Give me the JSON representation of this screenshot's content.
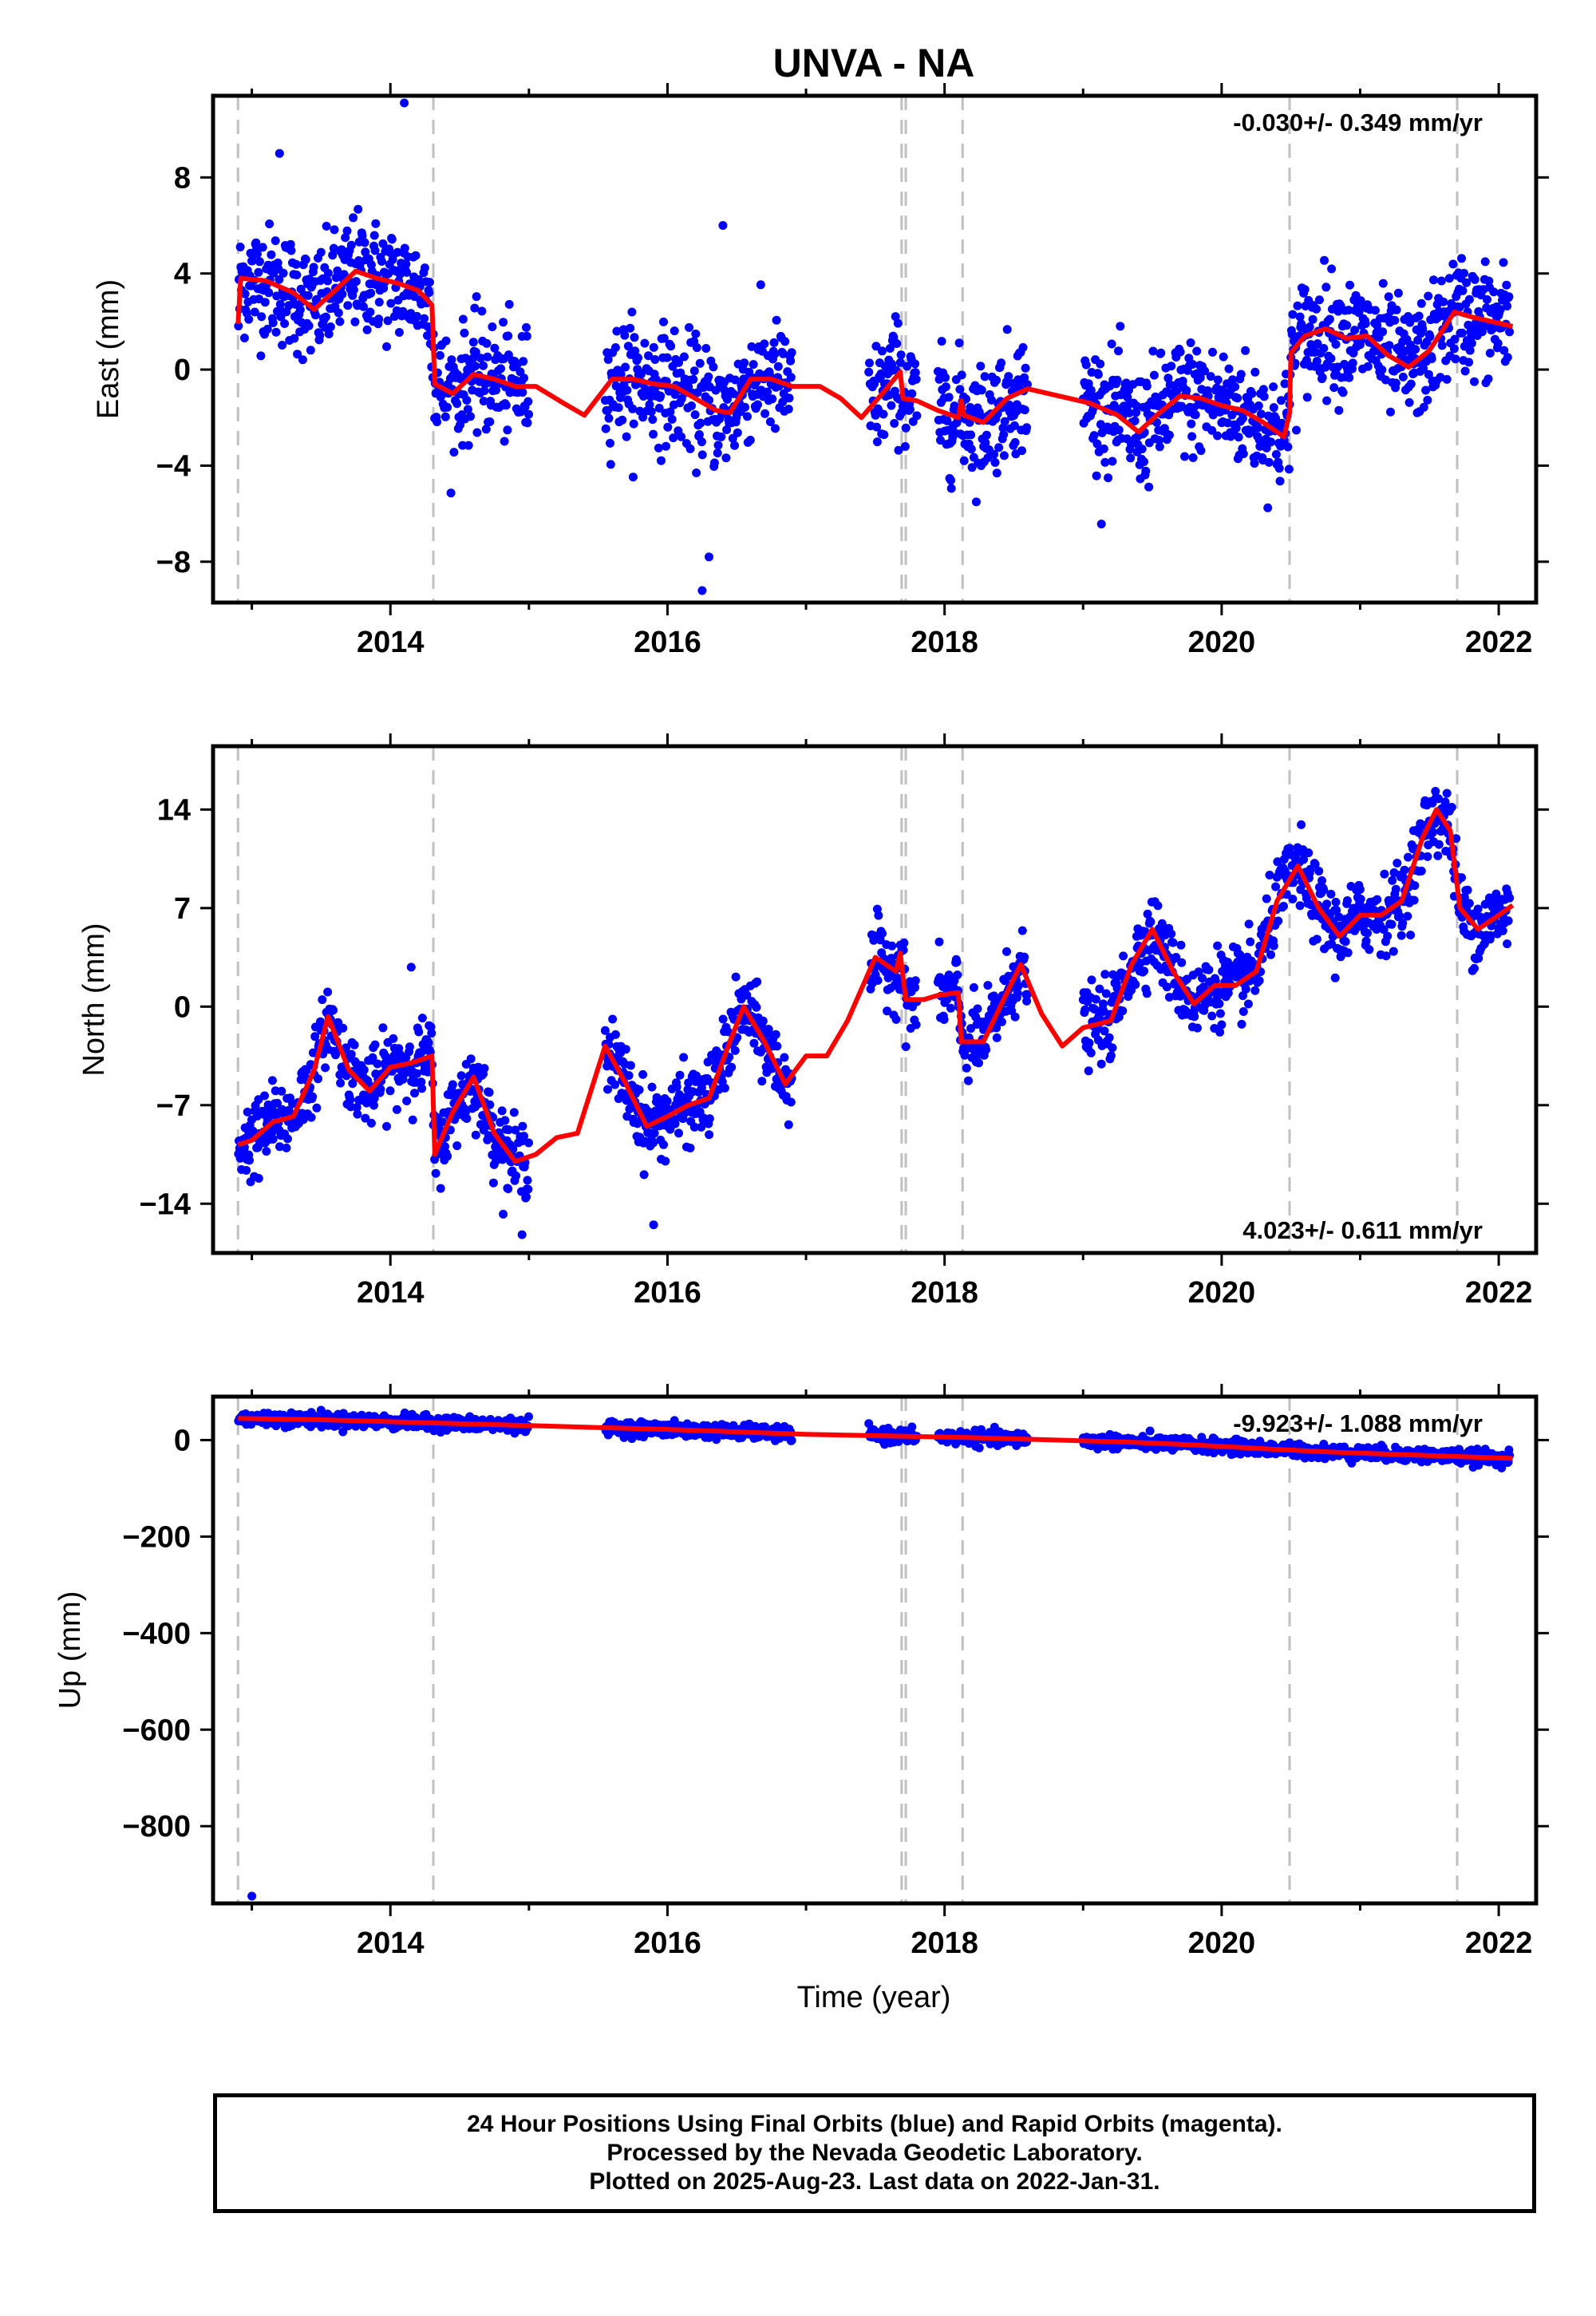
{
  "chart_data": {
    "title": "UNVA - NA",
    "type": "scatter",
    "xlabel": "Time (year)",
    "xlim": [
      2012.72,
      2022.27
    ],
    "x_ticks": [
      2014,
      2016,
      2018,
      2020,
      2022
    ],
    "breaks": [
      2012.9,
      2014.31,
      2017.69,
      2017.72,
      2018.13,
      2020.49,
      2021.7
    ],
    "colors": {
      "points": "#0000ff",
      "model": "#ff0000",
      "breaks": "#c0c0c0"
    },
    "panels": [
      {
        "name": "east",
        "ylabel": "East (mm)",
        "ylim": [
          -9.7,
          11.4
        ],
        "y_ticks": [
          -8,
          -4,
          0,
          4,
          8
        ],
        "y_tick_labels": [
          "−8",
          "−4",
          "0",
          "4",
          "8"
        ],
        "rate": "-0.030+/- 0.349 mm/yr",
        "rate_position": "top-right",
        "noise": 1.2,
        "model": [
          [
            2012.9,
            1.9
          ],
          [
            2012.92,
            3.8
          ],
          [
            2013.1,
            3.7
          ],
          [
            2013.3,
            3.2
          ],
          [
            2013.45,
            2.5
          ],
          [
            2013.6,
            3.3
          ],
          [
            2013.75,
            4.1
          ],
          [
            2013.9,
            3.8
          ],
          [
            2014.05,
            3.6
          ],
          [
            2014.2,
            3.3
          ],
          [
            2014.3,
            2.7
          ],
          [
            2014.32,
            -0.6
          ],
          [
            2014.45,
            -1.0
          ],
          [
            2014.6,
            -0.2
          ],
          [
            2014.75,
            -0.4
          ],
          [
            2014.9,
            -0.7
          ],
          [
            2015.05,
            -0.7
          ],
          [
            2015.25,
            -1.4
          ],
          [
            2015.4,
            -1.9
          ],
          [
            2015.6,
            -0.4
          ],
          [
            2015.75,
            -0.4
          ],
          [
            2015.9,
            -0.6
          ],
          [
            2016.05,
            -0.7
          ],
          [
            2016.2,
            -1.2
          ],
          [
            2016.35,
            -1.7
          ],
          [
            2016.45,
            -1.8
          ],
          [
            2016.6,
            -0.4
          ],
          [
            2016.75,
            -0.4
          ],
          [
            2016.9,
            -0.7
          ],
          [
            2017.1,
            -0.7
          ],
          [
            2017.25,
            -1.2
          ],
          [
            2017.4,
            -2.0
          ],
          [
            2017.55,
            -1.0
          ],
          [
            2017.68,
            -0.1
          ],
          [
            2017.7,
            -1.2
          ],
          [
            2017.8,
            -1.3
          ],
          [
            2017.95,
            -1.7
          ],
          [
            2018.1,
            -2.0
          ],
          [
            2018.12,
            -1.3
          ],
          [
            2018.14,
            -1.9
          ],
          [
            2018.28,
            -2.2
          ],
          [
            2018.45,
            -1.2
          ],
          [
            2018.6,
            -0.8
          ],
          [
            2018.75,
            -1.0
          ],
          [
            2018.9,
            -1.2
          ],
          [
            2019.05,
            -1.4
          ],
          [
            2019.25,
            -1.9
          ],
          [
            2019.4,
            -2.6
          ],
          [
            2019.55,
            -1.8
          ],
          [
            2019.7,
            -1.1
          ],
          [
            2019.85,
            -1.2
          ],
          [
            2020.0,
            -1.5
          ],
          [
            2020.15,
            -1.7
          ],
          [
            2020.3,
            -2.2
          ],
          [
            2020.45,
            -2.8
          ],
          [
            2020.49,
            -1.8
          ],
          [
            2020.5,
            0.7
          ],
          [
            2020.6,
            1.4
          ],
          [
            2020.75,
            1.7
          ],
          [
            2020.9,
            1.3
          ],
          [
            2021.05,
            1.4
          ],
          [
            2021.2,
            0.6
          ],
          [
            2021.35,
            0.1
          ],
          [
            2021.5,
            0.8
          ],
          [
            2021.68,
            2.4
          ],
          [
            2021.8,
            2.2
          ],
          [
            2022.1,
            1.8
          ]
        ],
        "outliers": [
          [
            2014.1,
            11.1
          ],
          [
            2013.2,
            9.0
          ],
          [
            2016.4,
            6.0
          ],
          [
            2016.3,
            -7.8
          ],
          [
            2016.25,
            -9.2
          ]
        ]
      },
      {
        "name": "north",
        "ylabel": "North (mm)",
        "ylim": [
          -17.5,
          18.5
        ],
        "y_ticks": [
          -14,
          -7,
          0,
          7,
          14
        ],
        "y_tick_labels": [
          "−14",
          "−7",
          "0",
          "7",
          "14"
        ],
        "rate": "4.023+/- 0.611 mm/yr",
        "rate_position": "bottom-right",
        "noise": 1.3,
        "model": [
          [
            2012.9,
            -9.8
          ],
          [
            2013.0,
            -9.5
          ],
          [
            2013.15,
            -8.2
          ],
          [
            2013.3,
            -7.8
          ],
          [
            2013.45,
            -4.5
          ],
          [
            2013.55,
            -0.7
          ],
          [
            2013.7,
            -4.5
          ],
          [
            2013.85,
            -6.0
          ],
          [
            2014.0,
            -4.3
          ],
          [
            2014.15,
            -4.0
          ],
          [
            2014.3,
            -3.5
          ],
          [
            2014.32,
            -10.5
          ],
          [
            2014.45,
            -7.5
          ],
          [
            2014.6,
            -5.0
          ],
          [
            2014.75,
            -9.0
          ],
          [
            2014.9,
            -11.0
          ],
          [
            2015.05,
            -10.5
          ],
          [
            2015.2,
            -9.3
          ],
          [
            2015.35,
            -9.0
          ],
          [
            2015.55,
            -2.8
          ],
          [
            2015.7,
            -5.5
          ],
          [
            2015.85,
            -8.5
          ],
          [
            2016.0,
            -7.8
          ],
          [
            2016.15,
            -7.0
          ],
          [
            2016.3,
            -6.5
          ],
          [
            2016.45,
            -2.5
          ],
          [
            2016.55,
            0.0
          ],
          [
            2016.7,
            -2.5
          ],
          [
            2016.85,
            -5.5
          ],
          [
            2017.0,
            -3.5
          ],
          [
            2017.15,
            -3.5
          ],
          [
            2017.3,
            -1.0
          ],
          [
            2017.5,
            3.5
          ],
          [
            2017.65,
            2.5
          ],
          [
            2017.68,
            3.8
          ],
          [
            2017.72,
            0.5
          ],
          [
            2017.85,
            0.5
          ],
          [
            2017.95,
            0.8
          ],
          [
            2018.1,
            1.0
          ],
          [
            2018.12,
            -2.5
          ],
          [
            2018.28,
            -2.5
          ],
          [
            2018.45,
            1.0
          ],
          [
            2018.55,
            3.0
          ],
          [
            2018.7,
            -0.5
          ],
          [
            2018.85,
            -2.8
          ],
          [
            2019.0,
            -1.5
          ],
          [
            2019.2,
            -1.0
          ],
          [
            2019.35,
            3.0
          ],
          [
            2019.5,
            5.5
          ],
          [
            2019.65,
            2.5
          ],
          [
            2019.8,
            0.2
          ],
          [
            2019.95,
            1.5
          ],
          [
            2020.1,
            1.5
          ],
          [
            2020.25,
            2.5
          ],
          [
            2020.4,
            7.5
          ],
          [
            2020.55,
            10.0
          ],
          [
            2020.7,
            7.0
          ],
          [
            2020.85,
            5.0
          ],
          [
            2021.0,
            6.5
          ],
          [
            2021.15,
            6.5
          ],
          [
            2021.3,
            7.5
          ],
          [
            2021.45,
            12.0
          ],
          [
            2021.55,
            14.0
          ],
          [
            2021.65,
            12.5
          ],
          [
            2021.72,
            7.0
          ],
          [
            2021.85,
            5.5
          ],
          [
            2022.0,
            6.5
          ],
          [
            2022.1,
            7.2
          ]
        ],
        "outliers": [
          [
            2014.15,
            2.8
          ],
          [
            2013.05,
            -12.2
          ],
          [
            2015.9,
            -15.5
          ],
          [
            2014.95,
            -16.2
          ]
        ]
      },
      {
        "name": "up",
        "ylabel": "Up (mm)",
        "ylim": [
          -960,
          90
        ],
        "y_ticks": [
          -800,
          -600,
          -400,
          -200,
          0
        ],
        "y_tick_labels": [
          "−800",
          "−600",
          "−400",
          "−200",
          "0"
        ],
        "rate": "-9.923+/- 1.088 mm/yr",
        "rate_position": "top-right",
        "noise": 7,
        "model": [
          [
            2012.9,
            45
          ],
          [
            2013.5,
            42
          ],
          [
            2014.0,
            38
          ],
          [
            2014.5,
            34
          ],
          [
            2015.0,
            30
          ],
          [
            2015.5,
            26
          ],
          [
            2016.0,
            22
          ],
          [
            2016.5,
            17
          ],
          [
            2017.0,
            12
          ],
          [
            2017.7,
            8
          ],
          [
            2018.2,
            5
          ],
          [
            2018.8,
            0
          ],
          [
            2019.3,
            -4
          ],
          [
            2019.8,
            -10
          ],
          [
            2020.3,
            -18
          ],
          [
            2020.8,
            -25
          ],
          [
            2021.3,
            -30
          ],
          [
            2021.7,
            -34
          ],
          [
            2022.1,
            -38
          ]
        ],
        "outliers": [
          [
            2013.0,
            -945
          ]
        ]
      }
    ],
    "data_gaps": [
      [
        2015.0,
        2015.55
      ],
      [
        2016.9,
        2017.45
      ],
      [
        2017.8,
        2017.95
      ],
      [
        2018.6,
        2019.0
      ]
    ]
  },
  "caption": {
    "line1": "24 Hour Positions Using Final Orbits (blue) and Rapid Orbits (magenta).",
    "line2": "Processed by the Nevada Geodetic Laboratory.",
    "line3": "Plotted on 2025-Aug-23. Last data on 2022-Jan-31."
  }
}
